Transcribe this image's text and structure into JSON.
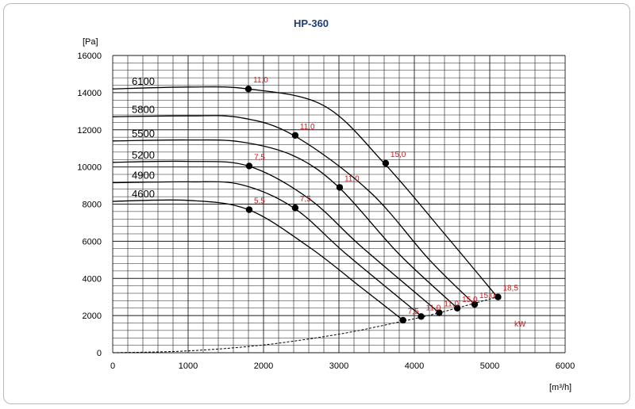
{
  "chart_data": {
    "type": "line",
    "title": "HP-360",
    "xunit": "[m³/h]",
    "yunit": "[Pa]",
    "xlim": [
      0,
      6000
    ],
    "ylim": [
      0,
      16000
    ],
    "x_ticks": [
      "0",
      "1000",
      "2000",
      "3000",
      "4000",
      "5000",
      "6000"
    ],
    "y_ticks": [
      "0",
      "2000",
      "4000",
      "6000",
      "8000",
      "10000",
      "12000",
      "14000",
      "16000"
    ],
    "grid": true,
    "power_unit": "kW",
    "series": [
      {
        "name": "6100",
        "points": [
          [
            0,
            14200
          ],
          [
            1000,
            14300
          ],
          [
            1800,
            14200
          ],
          [
            2800,
            13300
          ],
          [
            3600,
            10200
          ],
          [
            4400,
            6400
          ],
          [
            5100,
            3000
          ]
        ],
        "markers": [
          {
            "x": 1800,
            "y": 14200,
            "label": "11,0"
          },
          {
            "x": 3620,
            "y": 10200,
            "label": "15,0"
          },
          {
            "x": 5110,
            "y": 3000,
            "label": "18,5"
          }
        ]
      },
      {
        "name": "5800",
        "points": [
          [
            0,
            12700
          ],
          [
            1000,
            12750
          ],
          [
            1700,
            12650
          ],
          [
            2400,
            11700
          ],
          [
            3400,
            8700
          ],
          [
            4200,
            5000
          ],
          [
            4800,
            2600
          ]
        ],
        "markers": [
          {
            "x": 2420,
            "y": 11700,
            "label": "11,0"
          },
          {
            "x": 4800,
            "y": 2600,
            "label": "15,0"
          }
        ]
      },
      {
        "name": "5500",
        "points": [
          [
            0,
            11400
          ],
          [
            1000,
            11450
          ],
          [
            1700,
            11350
          ],
          [
            2400,
            10600
          ],
          [
            3000,
            8900
          ],
          [
            3800,
            5300
          ],
          [
            4570,
            2400
          ]
        ],
        "markers": [
          {
            "x": 3010,
            "y": 8900,
            "label": "11,0"
          },
          {
            "x": 4570,
            "y": 2400,
            "label": "15,0"
          }
        ]
      },
      {
        "name": "5200",
        "points": [
          [
            0,
            10250
          ],
          [
            1000,
            10300
          ],
          [
            1800,
            10050
          ],
          [
            2600,
            8300
          ],
          [
            3300,
            5700
          ],
          [
            4330,
            2150
          ]
        ],
        "markers": [
          {
            "x": 1810,
            "y": 10050,
            "label": "7,5"
          },
          {
            "x": 4330,
            "y": 2150,
            "label": "11,0"
          }
        ]
      },
      {
        "name": "4900",
        "points": [
          [
            0,
            9150
          ],
          [
            1000,
            9200
          ],
          [
            1700,
            9050
          ],
          [
            2400,
            7800
          ],
          [
            3100,
            5300
          ],
          [
            4100,
            1950
          ]
        ],
        "markers": [
          {
            "x": 2420,
            "y": 7800,
            "label": "7,5"
          },
          {
            "x": 4090,
            "y": 1950,
            "label": "11,0"
          }
        ]
      },
      {
        "name": "4600",
        "points": [
          [
            0,
            8150
          ],
          [
            1000,
            8200
          ],
          [
            1800,
            7700
          ],
          [
            2600,
            5700
          ],
          [
            3300,
            3500
          ],
          [
            3850,
            1750
          ]
        ],
        "markers": [
          {
            "x": 1810,
            "y": 7700,
            "label": "5,5"
          },
          {
            "x": 3850,
            "y": 1750,
            "label": "7,5"
          }
        ]
      }
    ],
    "system_curve": {
      "style": "dashed",
      "points": [
        [
          0,
          0
        ],
        [
          1000,
          100
        ],
        [
          2000,
          420
        ],
        [
          3000,
          1000
        ],
        [
          3850,
          1700
        ],
        [
          4330,
          2150
        ],
        [
          5100,
          3000
        ]
      ]
    }
  }
}
